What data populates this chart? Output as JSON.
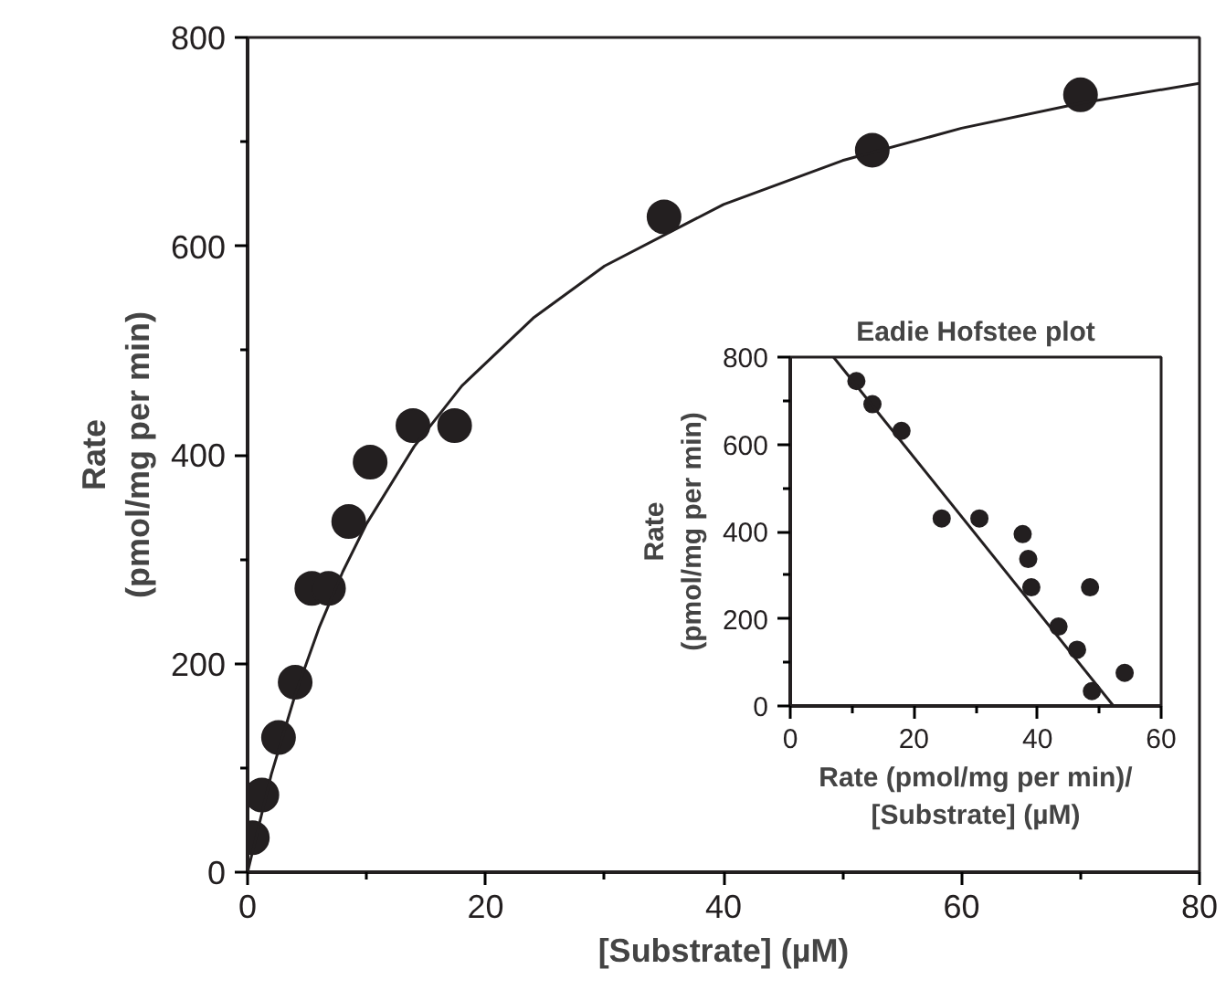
{
  "chart_data": [
    {
      "type": "scatter",
      "xlabel": "[Substrate] (µM)",
      "ylabel": "Rate\n(pmol/mg per min)",
      "xlim": [
        0,
        80
      ],
      "ylim": [
        0,
        800
      ],
      "grid": false,
      "xticks": [
        0,
        {
          "value": 10,
          "label": null
        },
        20,
        {
          "value": 30,
          "label": null
        },
        40,
        {
          "value": 50,
          "label": null
        },
        60,
        {
          "value": 70,
          "label": null
        },
        80
      ],
      "yticks": [
        0,
        {
          "value": 100,
          "label": null
        },
        200,
        {
          "value": 300,
          "label": null
        },
        400,
        {
          "value": 500,
          "label": null
        },
        600,
        {
          "value": 700,
          "label": null
        },
        800
      ],
      "series": [
        {
          "marker": "circle",
          "color": "#231f20",
          "x": [
            0.4,
            1.2,
            2.6,
            4.0,
            5.4,
            6.8,
            8.5,
            10.3,
            13.9,
            17.4,
            35,
            52.5,
            70
          ],
          "values": [
            33,
            74,
            129,
            182,
            272,
            272,
            336,
            393,
            428,
            428,
            628,
            692,
            745
          ]
        },
        {
          "type": "line",
          "color": "#231f20",
          "x": [
            0,
            2,
            4,
            6,
            8,
            10,
            14,
            18,
            24,
            30,
            40,
            50,
            60,
            70,
            80
          ],
          "values": [
            0,
            94,
            170,
            234,
            288,
            334,
            408,
            466,
            531,
            581,
            640,
            682,
            713,
            737,
            756
          ]
        }
      ]
    },
    {
      "type": "scatter",
      "title": "Eadie Hofstee plot",
      "xlabel": "Rate (pmol/mg per min)/\n[Substrate] (µM)",
      "ylabel": "Rate\n(pmol/mg per min)",
      "xlim": [
        0,
        60
      ],
      "ylim": [
        0,
        800
      ],
      "grid": false,
      "xticks": [
        0,
        {
          "value": 10,
          "label": null
        },
        20,
        {
          "value": 30,
          "label": null
        },
        40,
        {
          "value": 50,
          "label": null
        },
        60
      ],
      "yticks": [
        0,
        {
          "value": 100,
          "label": null
        },
        200,
        {
          "value": 300,
          "label": null
        },
        400,
        {
          "value": 500,
          "label": null
        },
        600,
        {
          "value": 700,
          "label": null
        },
        800
      ],
      "series": [
        {
          "marker": "circle",
          "color": "#231f20",
          "x": [
            10.7,
            13.3,
            18.0,
            24.5,
            30.6,
            37.6,
            38.5,
            39.0,
            48.5,
            43.4,
            46.4,
            48.8,
            54.1
          ],
          "values": [
            745,
            692,
            631,
            430,
            430,
            394,
            337,
            272,
            272,
            182,
            129,
            34,
            76
          ]
        },
        {
          "type": "line",
          "color": "#231f20",
          "x": [
            7.0,
            52.3
          ],
          "values": [
            800,
            0
          ]
        }
      ]
    }
  ]
}
